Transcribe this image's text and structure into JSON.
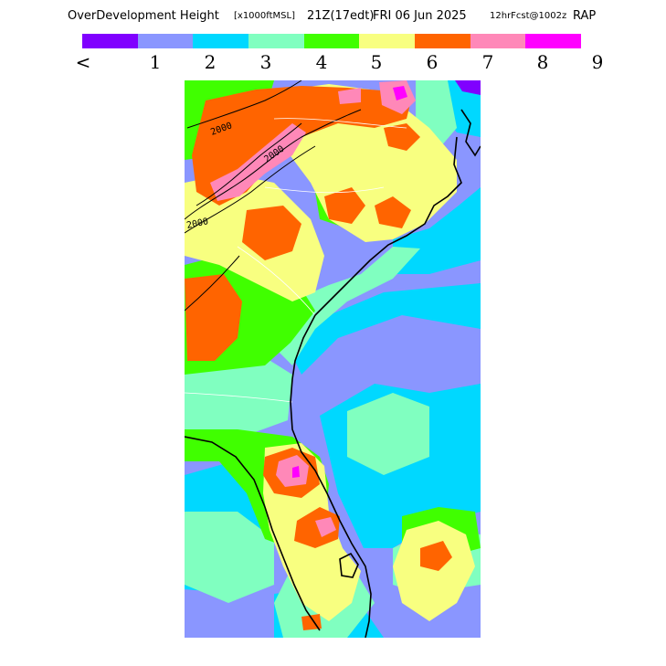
{
  "title": {
    "product": "OverDevelopment Height",
    "units": "[x1000ftMSL]",
    "valid": "21Z(17edt)",
    "date": "FRI 06 Jun 2025",
    "forecast": "12hrFcst@1002z",
    "model": "RAP"
  },
  "legend": {
    "colors": [
      "#8000ff",
      "#8a96ff",
      "#00d8ff",
      "#80ffc0",
      "#40ff00",
      "#f8ff80",
      "#ff6400",
      "#ff88b8",
      "#ff00ff"
    ],
    "labels": [
      "<",
      "1",
      "2",
      "3",
      "4",
      "5",
      "6",
      "7",
      "8",
      "9"
    ]
  },
  "map": {
    "background": "#8a96ff",
    "contour_labels": [
      "2000",
      "2000",
      "2000"
    ]
  }
}
